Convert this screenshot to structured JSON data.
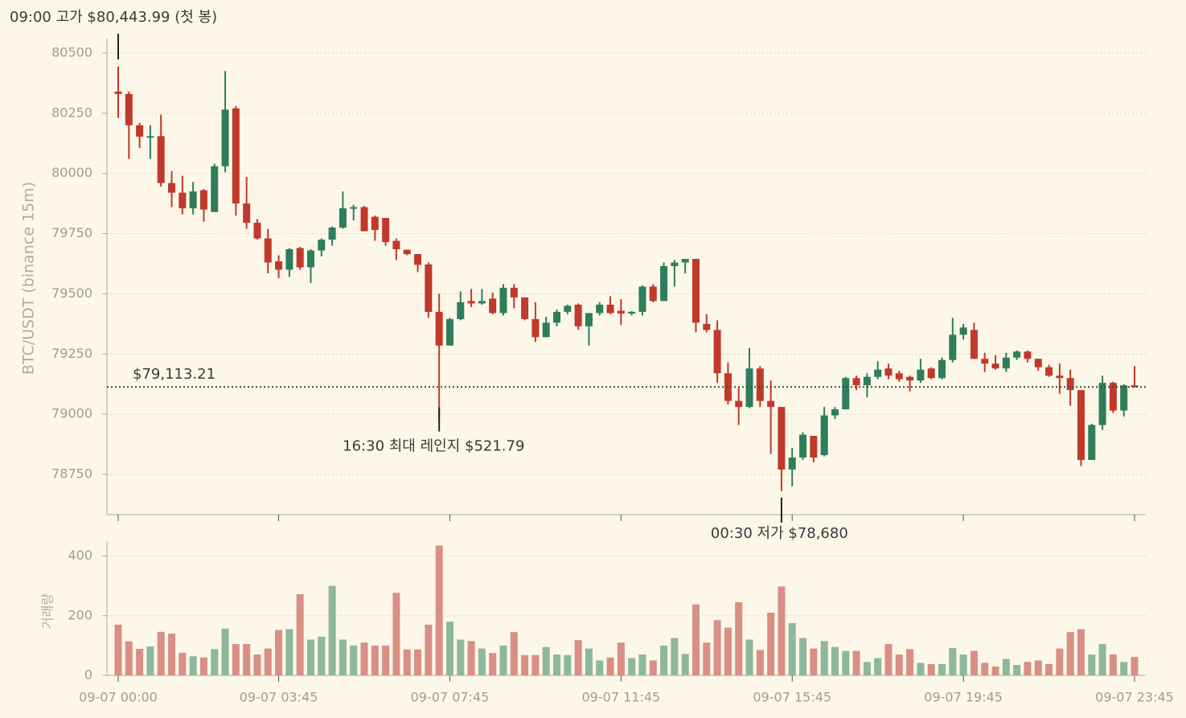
{
  "chart_data": [
    {
      "type": "candlestick",
      "ylabel": "BTC/USDT (binance 15m)",
      "up_color": "#2e7d5b",
      "down_color": "#c0392b",
      "open": [
        80340,
        80330,
        80200,
        80150,
        80155,
        79960,
        79920,
        79855,
        79930,
        79840,
        80030,
        80270,
        79875,
        79795,
        79730,
        79635,
        79600,
        79690,
        79610,
        79680,
        79725,
        79775,
        79855,
        79860,
        79820,
        79815,
        79720,
        79683,
        79665,
        79622,
        79425,
        79285,
        79395,
        79470,
        79460,
        79480,
        79420,
        79525,
        79485,
        79395,
        79320,
        79380,
        79425,
        79455,
        79365,
        79420,
        79455,
        79430,
        79418,
        79425,
        79530,
        79470,
        79615,
        79630,
        79645,
        79375,
        79350,
        79170,
        79055,
        79030,
        79190,
        79055,
        79030,
        78770,
        78820,
        78910,
        78830,
        78995,
        79020,
        79150,
        79120,
        79155,
        79190,
        79170,
        79155,
        79140,
        79190,
        79150,
        79225,
        79330,
        79350,
        79230,
        79210,
        79190,
        79235,
        79260,
        79230,
        79195,
        79160,
        79150,
        79100,
        78810,
        78955,
        79130,
        79015,
        79120
      ],
      "high": [
        80443.99,
        80340,
        80210,
        80200,
        80245,
        80010,
        79990,
        79965,
        79935,
        80040,
        80425,
        80280,
        79985,
        79810,
        79770,
        79660,
        79690,
        79695,
        79685,
        79730,
        79780,
        79925,
        79870,
        79865,
        79825,
        79815,
        79730,
        79683,
        79665,
        79630,
        79500,
        79400,
        79510,
        79520,
        79520,
        79505,
        79540,
        79540,
        79485,
        79465,
        79405,
        79435,
        79455,
        79460,
        79420,
        79465,
        79490,
        79478,
        79428,
        79535,
        79540,
        79630,
        79640,
        79645,
        79645,
        79415,
        79390,
        79215,
        79110,
        79275,
        79200,
        79140,
        79030,
        78860,
        78925,
        78910,
        79030,
        79030,
        79155,
        79160,
        79170,
        79220,
        79210,
        79180,
        79160,
        79230,
        79195,
        79235,
        79400,
        79375,
        79380,
        79255,
        79245,
        79255,
        79265,
        79265,
        79230,
        79205,
        79210,
        79185,
        79100,
        78960,
        79160,
        79135,
        79125,
        79200
      ],
      "low": [
        80230,
        80060,
        80105,
        80060,
        79945,
        79860,
        79830,
        79830,
        79800,
        79840,
        80005,
        79825,
        79770,
        79725,
        79585,
        79565,
        79570,
        79600,
        79545,
        79655,
        79700,
        79770,
        79805,
        79760,
        79720,
        79700,
        79640,
        79660,
        79590,
        79400,
        78978.21,
        79285,
        79390,
        79445,
        79455,
        79415,
        79410,
        79440,
        79390,
        79300,
        79320,
        79365,
        79415,
        79350,
        79285,
        79410,
        79415,
        79370,
        79410,
        79410,
        79465,
        79470,
        79530,
        79585,
        79340,
        79340,
        79130,
        79040,
        78955,
        79025,
        79030,
        78835,
        78680,
        78700,
        78810,
        78800,
        78825,
        78980,
        79020,
        79100,
        79070,
        79145,
        79145,
        79135,
        79095,
        79130,
        79145,
        79145,
        79215,
        79310,
        79230,
        79175,
        79185,
        79175,
        79225,
        79215,
        79180,
        79155,
        79085,
        79035,
        78785,
        78810,
        78935,
        79005,
        78990,
        79110
      ],
      "close": [
        80330,
        80200,
        80153,
        80155,
        79960,
        79920,
        79855,
        79925,
        79850,
        80030,
        80265,
        79875,
        79795,
        79730,
        79630,
        79600,
        79685,
        79610,
        79680,
        79725,
        79775,
        79855,
        79860,
        79760,
        79765,
        79715,
        79685,
        79665,
        79620,
        79425,
        79285,
        79395,
        79465,
        79460,
        79470,
        79420,
        79525,
        79485,
        79395,
        79320,
        79380,
        79425,
        79450,
        79365,
        79420,
        79455,
        79420,
        79418,
        79425,
        79530,
        79470,
        79615,
        79630,
        79645,
        79380,
        79350,
        79170,
        79055,
        79030,
        79190,
        79055,
        79030,
        78770,
        78820,
        78915,
        78820,
        78995,
        79020,
        79150,
        79120,
        79155,
        79185,
        79160,
        79145,
        79140,
        79185,
        79150,
        79225,
        79330,
        79360,
        79230,
        79210,
        79190,
        79235,
        79260,
        79230,
        79195,
        79160,
        79150,
        79100,
        78810,
        78955,
        79130,
        79015,
        79120,
        79113.21
      ],
      "ylim": [
        78583,
        80560
      ],
      "yticks": [
        78750,
        79000,
        79250,
        79500,
        79750,
        80000,
        80250,
        80500
      ],
      "grid": true,
      "last_price": {
        "value": 79113.21,
        "label": "$79,113.21"
      },
      "annotations": [
        "09:00 고가 $80,443.99 (첫 봉)",
        "16:30 최대 레인지 $521.79",
        "00:30 저가 $78,680"
      ]
    },
    {
      "type": "bar",
      "ylabel": "거래량",
      "up_color": "#8db89b",
      "down_color": "#d98f84",
      "categories": [
        "09-07 00:00",
        null,
        null,
        null,
        null,
        null,
        null,
        null,
        null,
        null,
        null,
        null,
        null,
        null,
        null,
        "09-07 03:45",
        null,
        null,
        null,
        null,
        null,
        null,
        null,
        null,
        null,
        null,
        null,
        null,
        null,
        null,
        null,
        "09-07 07:45",
        null,
        null,
        null,
        null,
        null,
        null,
        null,
        null,
        null,
        null,
        null,
        null,
        null,
        null,
        null,
        "09-07 11:45",
        null,
        null,
        null,
        null,
        null,
        null,
        null,
        null,
        null,
        null,
        null,
        null,
        null,
        null,
        null,
        "09-07 15:45",
        null,
        null,
        null,
        null,
        null,
        null,
        null,
        null,
        null,
        null,
        null,
        null,
        null,
        null,
        null,
        "09-07 19:45",
        null,
        null,
        null,
        null,
        null,
        null,
        null,
        null,
        null,
        null,
        null,
        null,
        null,
        null,
        null,
        "09-07 23:45"
      ],
      "values": [
        170,
        114,
        89,
        97,
        146,
        140,
        76,
        64,
        60,
        88,
        157,
        105,
        105,
        70,
        90,
        152,
        155,
        272,
        120,
        130,
        300,
        120,
        100,
        110,
        100,
        100,
        277,
        87,
        87,
        170,
        435,
        180,
        120,
        115,
        90,
        75,
        100,
        145,
        68,
        68,
        95,
        70,
        68,
        118,
        90,
        50,
        60,
        110,
        58,
        70,
        50,
        100,
        125,
        72,
        238,
        110,
        185,
        160,
        245,
        120,
        85,
        210,
        298,
        175,
        125,
        90,
        115,
        95,
        82,
        82,
        45,
        58,
        105,
        70,
        88,
        42,
        38,
        38,
        92,
        70,
        82,
        42,
        30,
        55,
        35,
        45,
        50,
        38,
        90,
        145,
        155,
        70,
        105,
        70,
        45,
        62
      ],
      "ylim": [
        0,
        450
      ],
      "yticks": [
        0,
        200,
        400
      ],
      "grid": true
    }
  ]
}
